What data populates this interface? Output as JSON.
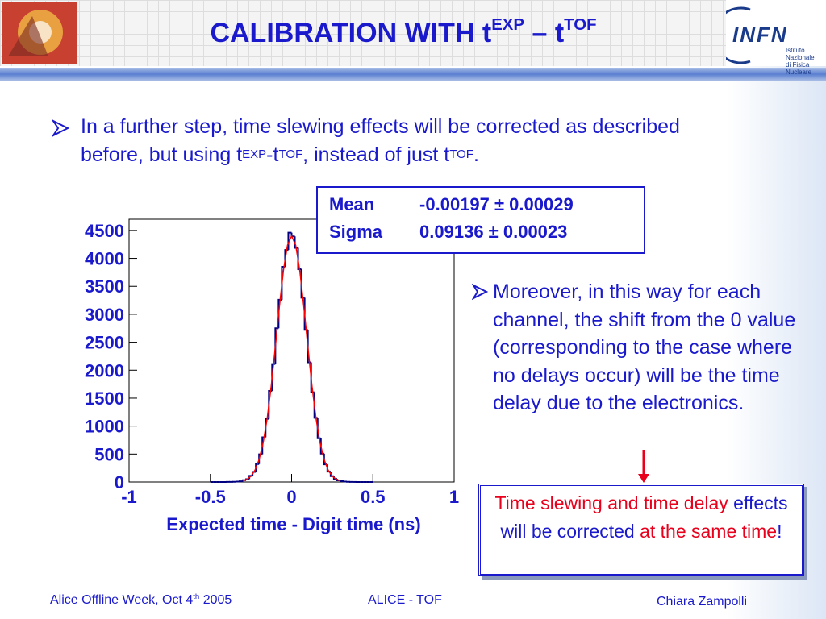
{
  "header": {
    "title": [
      "CALIBRATION WITH t",
      "EXP",
      " – t",
      "TOF"
    ],
    "logo": {
      "name": "INFN",
      "line1": "Istituto Nazionale",
      "line2": "di Fisica Nucleare"
    }
  },
  "bullets": [
    [
      "In a further step, time slewing effects will be corrected as described before, but using t",
      "EXP",
      "-t",
      "TOF",
      ", instead of just t",
      "TOF",
      "."
    ],
    [
      "Moreover, in this way for each channel, the shift from the 0 value (corresponding to the case where no delays occur) will be the time delay due to the electronics."
    ]
  ],
  "stats": {
    "rows": [
      [
        "Mean",
        "-0.00197 ± 0.00029"
      ],
      [
        "Sigma",
        "0.09136 ± 0.00023"
      ]
    ]
  },
  "callout": [
    {
      "text": "Time slewing and time delay",
      "color": "#e8001c"
    },
    {
      "text": " effects will be corrected ",
      "color": "#1a1acc"
    },
    {
      "text": "at the same time",
      "color": "#e8001c"
    },
    {
      "text": "!",
      "color": "#1a1acc"
    }
  ],
  "footer": {
    "left": [
      "Alice Offline Week, Oct 4",
      "th",
      " 2005"
    ],
    "center": "ALICE - TOF",
    "right": "Chiara Zampolli"
  },
  "chart_data": {
    "type": "histogram",
    "xlabel": "Expected time - Digit time (ns)",
    "xlim": [
      -1,
      1
    ],
    "xticks": [
      -1,
      -0.5,
      0,
      0.5,
      1
    ],
    "ylim": [
      0,
      4700
    ],
    "yticks": [
      0,
      500,
      1000,
      1500,
      2000,
      2500,
      3000,
      3500,
      4000,
      4500
    ],
    "color": "#000080",
    "bins": [
      -0.5,
      -0.48,
      -0.46,
      -0.44,
      -0.42,
      -0.4,
      -0.38,
      -0.36,
      -0.34,
      -0.32,
      -0.3,
      -0.28,
      -0.26,
      -0.24,
      -0.22,
      -0.2,
      -0.18,
      -0.16,
      -0.14,
      -0.12,
      -0.1,
      -0.08,
      -0.06,
      -0.04,
      -0.02,
      0,
      0.02,
      0.04,
      0.06,
      0.08,
      0.1,
      0.12,
      0.14,
      0.16,
      0.18,
      0.2,
      0.22,
      0.24,
      0.26,
      0.28,
      0.3,
      0.32,
      0.34,
      0.36,
      0.38,
      0.4,
      0.42,
      0.44,
      0.46,
      0.48,
      0.5
    ],
    "counts": [
      0,
      0,
      0,
      0,
      0,
      1,
      2,
      3,
      8,
      12,
      32,
      50,
      110,
      180,
      320,
      495,
      800,
      1130,
      1630,
      2110,
      2750,
      3260,
      3850,
      4150,
      4460,
      4394,
      4188,
      3806,
      3296,
      2721,
      2141,
      1606,
      1148,
      783,
      508,
      315,
      186,
      105,
      56,
      29,
      14,
      7,
      3,
      1,
      1,
      0,
      0,
      0,
      0,
      0
    ],
    "fit": {
      "color": "#ff0000",
      "x": [
        -0.3,
        -0.275,
        -0.25,
        -0.225,
        -0.2,
        -0.175,
        -0.15,
        -0.125,
        -0.1,
        -0.075,
        -0.05,
        -0.025,
        0,
        0.025,
        0.05,
        0.075,
        0.1,
        0.125,
        0.15,
        0.175,
        0.2,
        0.225,
        0.25,
        0.275,
        0.3
      ],
      "values": [
        20,
        48,
        104,
        212,
        401,
        703,
        1143,
        1725,
        2417,
        3141,
        3789,
        4238,
        4400,
        4238,
        3789,
        3141,
        2417,
        1725,
        1143,
        703,
        401,
        212,
        104,
        48,
        20
      ]
    }
  }
}
